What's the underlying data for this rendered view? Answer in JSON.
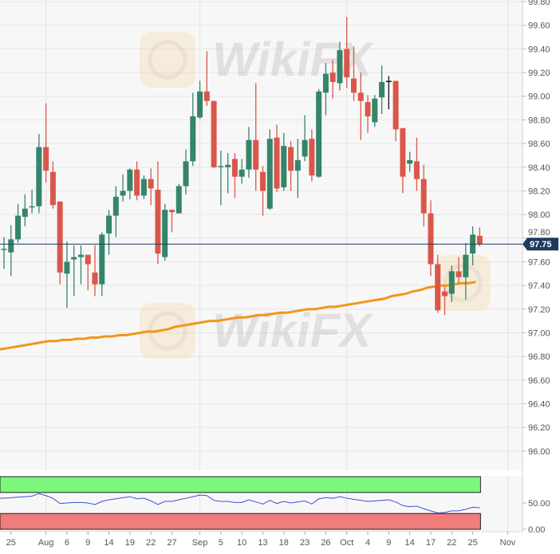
{
  "chart_data": [
    {
      "type": "candlestick",
      "price_axis": {
        "ticks": [
          "99.80",
          "99.60",
          "99.40",
          "99.20",
          "99.00",
          "98.80",
          "98.60",
          "98.40",
          "98.20",
          "98.00",
          "97.80",
          "97.60",
          "97.40",
          "97.20",
          "97.00",
          "96.80",
          "96.60",
          "96.40",
          "96.20",
          "96.00"
        ],
        "ylim": [
          95.9,
          99.8
        ]
      },
      "last_price": {
        "label": "97.75",
        "value": 97.75,
        "color": "#1f3a5f"
      },
      "x_axis_labels": [
        {
          "label": "25",
          "index": 1
        },
        {
          "label": "Aug",
          "index": 6
        },
        {
          "label": "6",
          "index": 9
        },
        {
          "label": "9",
          "index": 12
        },
        {
          "label": "14",
          "index": 15
        },
        {
          "label": "19",
          "index": 18
        },
        {
          "label": "22",
          "index": 21
        },
        {
          "label": "27",
          "index": 24
        },
        {
          "label": "Sep",
          "index": 28
        },
        {
          "label": "5",
          "index": 31
        },
        {
          "label": "10",
          "index": 34
        },
        {
          "label": "13",
          "index": 37
        },
        {
          "label": "18",
          "index": 40
        },
        {
          "label": "23",
          "index": 43
        },
        {
          "label": "26",
          "index": 46
        },
        {
          "label": "Oct",
          "index": 49
        },
        {
          "label": "4",
          "index": 52
        },
        {
          "label": "9",
          "index": 55
        },
        {
          "label": "14",
          "index": 58
        },
        {
          "label": "17",
          "index": 61
        },
        {
          "label": "22",
          "index": 64
        },
        {
          "label": "25",
          "index": 67
        },
        {
          "label": "Nov",
          "index": 72
        }
      ],
      "ohlc": [
        [
          97.7,
          97.81,
          97.54,
          97.71
        ],
        [
          97.68,
          97.91,
          97.48,
          97.79
        ],
        [
          97.79,
          98.09,
          97.76,
          97.99
        ],
        [
          97.98,
          98.17,
          97.9,
          98.05
        ],
        [
          98.06,
          98.21,
          98.01,
          98.07
        ],
        [
          98.07,
          98.68,
          98.01,
          98.57
        ],
        [
          98.57,
          98.94,
          98.27,
          98.37
        ],
        [
          98.36,
          98.45,
          98.05,
          98.08
        ],
        [
          98.11,
          98.11,
          97.41,
          97.51
        ],
        [
          97.5,
          97.77,
          97.21,
          97.6
        ],
        [
          97.62,
          97.74,
          97.31,
          97.64
        ],
        [
          97.64,
          97.74,
          97.41,
          97.66
        ],
        [
          97.66,
          97.66,
          97.36,
          97.58
        ],
        [
          97.51,
          97.74,
          97.31,
          97.41
        ],
        [
          97.41,
          97.85,
          97.31,
          97.83
        ],
        [
          97.84,
          98.04,
          97.66,
          97.99
        ],
        [
          97.99,
          98.24,
          97.81,
          98.15
        ],
        [
          98.16,
          98.34,
          98.11,
          98.2
        ],
        [
          98.2,
          98.39,
          98.13,
          98.38
        ],
        [
          98.38,
          98.45,
          98.12,
          98.16
        ],
        [
          98.16,
          98.33,
          98.13,
          98.3
        ],
        [
          98.3,
          98.39,
          98.08,
          98.22
        ],
        [
          98.21,
          98.45,
          97.58,
          97.67
        ],
        [
          97.64,
          98.09,
          97.61,
          98.04
        ],
        [
          98.04,
          98.04,
          97.85,
          98.02
        ],
        [
          98.01,
          98.26,
          98.01,
          98.24
        ],
        [
          98.24,
          98.55,
          98.17,
          98.45
        ],
        [
          98.45,
          99.03,
          98.41,
          98.83
        ],
        [
          98.82,
          99.13,
          98.81,
          99.04
        ],
        [
          99.04,
          99.38,
          98.92,
          98.96
        ],
        [
          98.96,
          98.96,
          98.39,
          98.4
        ],
        [
          98.4,
          98.54,
          98.08,
          98.41
        ],
        [
          98.4,
          98.52,
          98.18,
          98.42
        ],
        [
          98.47,
          98.52,
          98.14,
          98.32
        ],
        [
          98.32,
          98.47,
          98.26,
          98.38
        ],
        [
          98.38,
          98.74,
          98.31,
          98.63
        ],
        [
          98.63,
          99.11,
          98.2,
          98.38
        ],
        [
          98.36,
          98.41,
          97.99,
          98.2
        ],
        [
          98.05,
          98.72,
          98.04,
          98.64
        ],
        [
          98.65,
          98.76,
          98.19,
          98.22
        ],
        [
          98.23,
          98.69,
          98.2,
          98.58
        ],
        [
          98.57,
          98.62,
          98.2,
          98.37
        ],
        [
          98.37,
          98.64,
          98.14,
          98.46
        ],
        [
          98.49,
          98.84,
          98.45,
          98.63
        ],
        [
          98.64,
          98.72,
          98.28,
          98.33
        ],
        [
          98.32,
          99.06,
          98.31,
          99.04
        ],
        [
          99.03,
          99.28,
          98.84,
          99.19
        ],
        [
          99.2,
          99.31,
          98.98,
          99.12
        ],
        [
          99.11,
          99.46,
          99.05,
          99.39
        ],
        [
          99.4,
          99.67,
          99.07,
          99.16
        ],
        [
          99.15,
          99.42,
          98.96,
          99.03
        ],
        [
          99.03,
          99.2,
          98.63,
          98.96
        ],
        [
          98.95,
          99.01,
          98.69,
          98.83
        ],
        [
          98.78,
          99.01,
          98.74,
          98.98
        ],
        [
          98.99,
          99.26,
          98.85,
          99.12
        ],
        [
          99.13,
          99.17,
          98.89,
          99.13
        ],
        [
          99.13,
          99.13,
          98.62,
          98.72
        ],
        [
          98.73,
          98.73,
          98.18,
          98.32
        ],
        [
          98.43,
          98.53,
          98.36,
          98.46
        ],
        [
          98.45,
          98.65,
          98.2,
          98.3
        ],
        [
          98.3,
          98.42,
          97.9,
          98.01
        ],
        [
          98.01,
          98.12,
          97.48,
          97.58
        ],
        [
          97.58,
          97.66,
          97.17,
          97.19
        ],
        [
          97.35,
          97.39,
          97.15,
          97.31
        ],
        [
          97.33,
          97.57,
          97.26,
          97.52
        ],
        [
          97.52,
          97.64,
          97.42,
          97.47
        ],
        [
          97.47,
          97.76,
          97.28,
          97.66
        ],
        [
          97.67,
          97.9,
          97.57,
          97.83
        ],
        [
          97.82,
          97.89,
          97.73,
          97.75
        ]
      ],
      "moving_average": [
        96.86,
        96.87,
        96.88,
        96.89,
        96.9,
        96.91,
        96.92,
        96.93,
        96.93,
        96.94,
        96.94,
        96.95,
        96.95,
        96.96,
        96.96,
        96.97,
        96.97,
        96.98,
        96.98,
        96.99,
        97.0,
        97.01,
        97.01,
        97.02,
        97.03,
        97.05,
        97.06,
        97.07,
        97.08,
        97.09,
        97.1,
        97.1,
        97.11,
        97.12,
        97.13,
        97.13,
        97.14,
        97.15,
        97.15,
        97.16,
        97.17,
        97.17,
        97.18,
        97.19,
        97.2,
        97.2,
        97.21,
        97.22,
        97.22,
        97.23,
        97.24,
        97.25,
        97.26,
        97.27,
        97.28,
        97.29,
        97.31,
        97.32,
        97.33,
        97.35,
        97.36,
        97.38,
        97.39,
        97.4,
        97.4,
        97.41,
        97.42,
        97.42,
        97.43
      ],
      "colors": {
        "up": "#36846a",
        "down": "#d9574a",
        "neutral": "#111111",
        "moving_average": "#f0961c",
        "grid": "#e6e6e6",
        "background": "#f7f7f7"
      }
    },
    {
      "type": "line",
      "y_axis": {
        "ticks": [
          "50.00",
          "0.00"
        ],
        "ylim": [
          0,
          100
        ]
      },
      "bands": [
        {
          "from": 70,
          "to": 100,
          "color": "#7cf77c"
        },
        {
          "from": 0,
          "to": 30,
          "color": "#f07c7c"
        }
      ],
      "values": [
        59,
        60,
        61,
        62,
        63,
        68,
        64,
        59,
        49,
        50,
        51,
        51,
        50,
        47,
        53,
        56,
        58,
        60,
        62,
        58,
        59,
        54,
        47,
        53,
        53,
        56,
        59,
        62,
        65,
        64,
        55,
        53,
        53,
        51,
        51,
        56,
        52,
        48,
        55,
        49,
        53,
        50,
        52,
        54,
        48,
        58,
        60,
        59,
        62,
        59,
        57,
        55,
        53,
        54,
        55,
        56,
        52,
        45,
        43,
        44,
        39,
        35,
        31,
        32,
        35,
        35,
        38,
        42,
        41
      ],
      "color": "#3b4fd8"
    }
  ],
  "watermarks": [
    "WikiFX",
    "WikiFX",
    "WikiFX"
  ]
}
